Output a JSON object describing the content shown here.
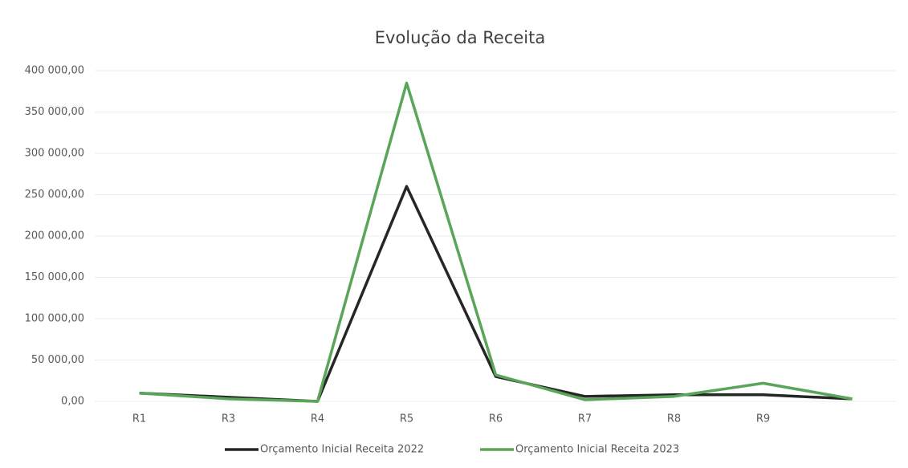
{
  "chart_data": {
    "type": "line",
    "title": "Evolução da Receita",
    "categories": [
      "R1",
      "R3",
      "R4",
      "R5",
      "R6",
      "R7",
      "R8",
      "R9",
      null
    ],
    "series": [
      {
        "name": "Orçamento Inicial Receita 2022",
        "color": "#262626",
        "values": [
          10000,
          5000,
          0,
          260000,
          30000,
          6000,
          8000,
          8000,
          3000
        ]
      },
      {
        "name": "Orçamento Inicial Receita 2023",
        "color": "#5aa55a",
        "values": [
          10000,
          3000,
          0,
          385000,
          32000,
          2000,
          6000,
          22000,
          3000
        ]
      }
    ],
    "ylim": [
      0,
      400000
    ],
    "yticks": [
      {
        "value": 0,
        "label": "0,00"
      },
      {
        "value": 50000,
        "label": "50 000,00"
      },
      {
        "value": 100000,
        "label": "100 000,00"
      },
      {
        "value": 150000,
        "label": "150 000,00"
      },
      {
        "value": 200000,
        "label": "200 000,00"
      },
      {
        "value": 250000,
        "label": "250 000,00"
      },
      {
        "value": 300000,
        "label": "300 000,00"
      },
      {
        "value": 350000,
        "label": "350 000,00"
      },
      {
        "value": 400000,
        "label": "400 000,00"
      }
    ],
    "grid": true,
    "legend": "bottom"
  }
}
